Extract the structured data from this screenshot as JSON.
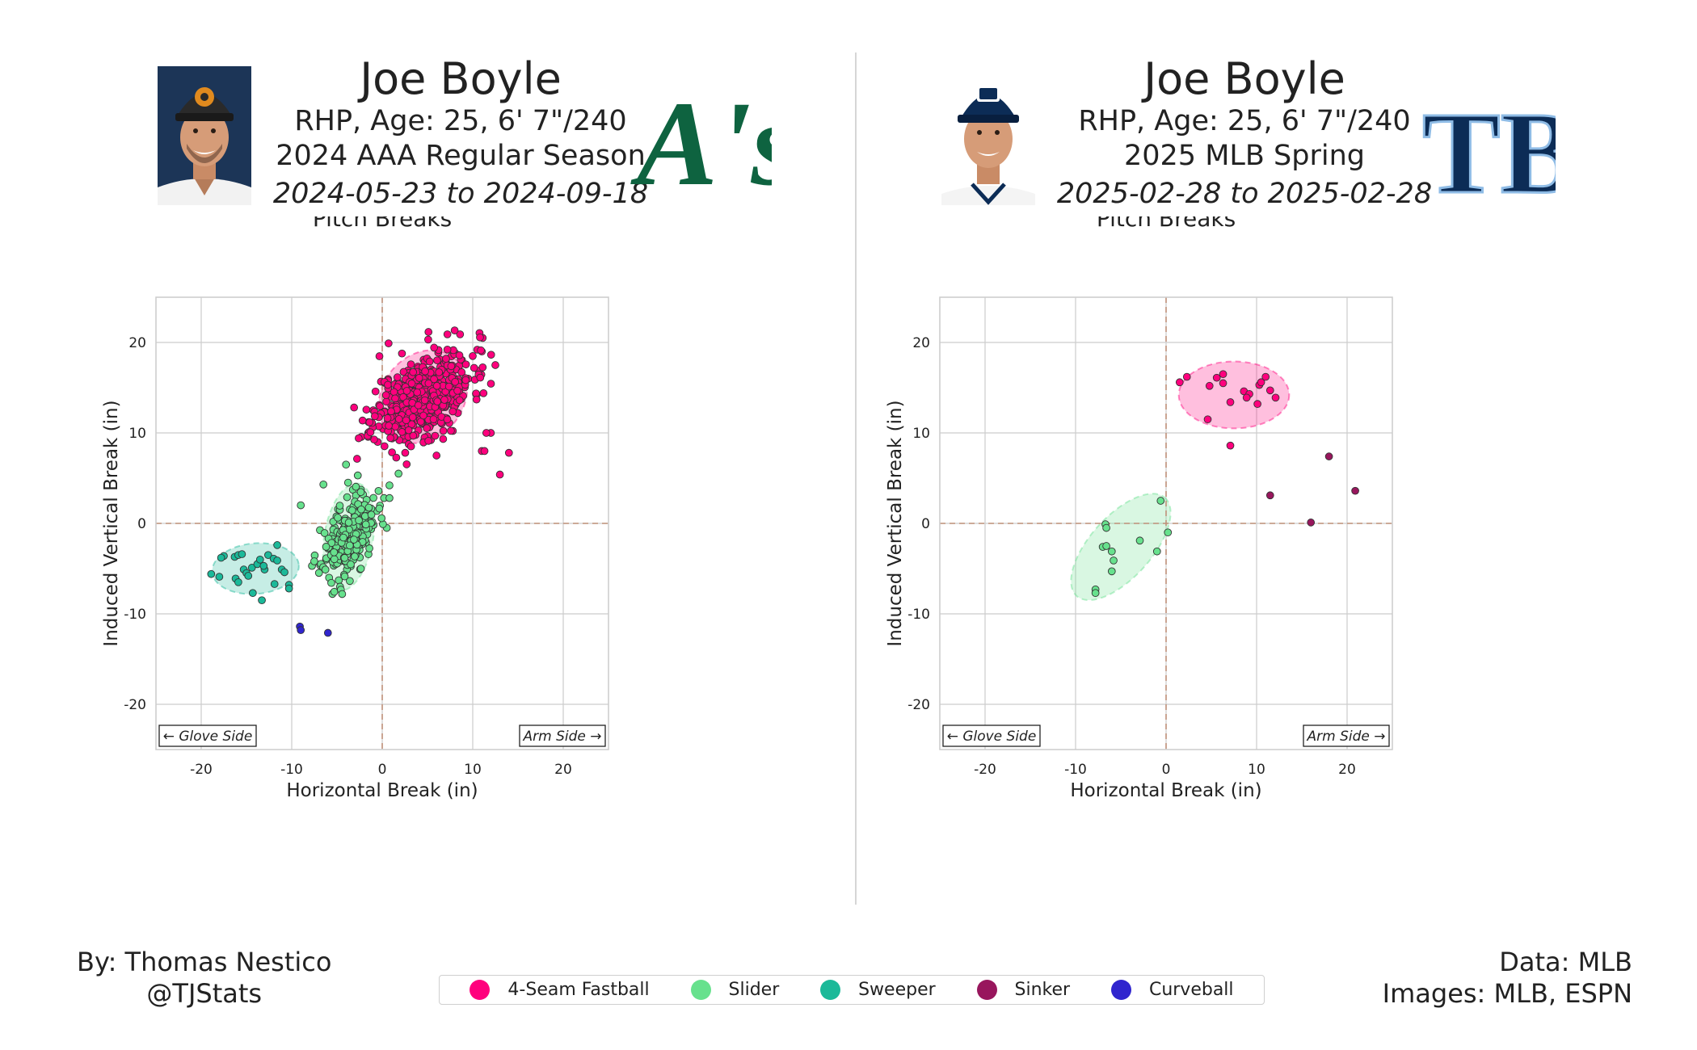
{
  "panels": [
    {
      "id": "left",
      "player_name": "Joe Boyle",
      "bio": "RHP, Age: 25, 6' 7\"/240",
      "season": "2024 AAA Regular Season",
      "dates": "2024-05-23 to 2024-09-18",
      "team_logo": "A's",
      "headshot_icon": "player-headshot-tigers-cap"
    },
    {
      "id": "right",
      "player_name": "Joe Boyle",
      "bio": "RHP, Age: 25, 6' 7\"/240",
      "season": "2025 MLB Spring",
      "dates": "2025-02-28 to 2025-02-28",
      "team_logo": "TB",
      "headshot_icon": "player-headshot-rays-cap"
    }
  ],
  "credits": {
    "by_line": "By: Thomas Nestico",
    "handle": "@TJStats",
    "data_line": "Data: MLB",
    "images_line": "Images: MLB, ESPN"
  },
  "legend": [
    {
      "label": "4-Seam Fastball",
      "color": "#ff007d"
    },
    {
      "label": "Slider",
      "color": "#67e18d"
    },
    {
      "label": "Sweeper",
      "color": "#1bb999"
    },
    {
      "label": "Sinker",
      "color": "#98165d"
    },
    {
      "label": "Curveball",
      "color": "#3025ce"
    }
  ],
  "chart_data": [
    {
      "type": "scatter",
      "title": "Pitch Breaks",
      "xlabel": "Horizontal Break (in)",
      "ylabel": "Induced Vertical Break (in)",
      "xlim": [
        -25,
        25
      ],
      "ylim": [
        -25,
        25
      ],
      "xticks": [
        -20,
        -10,
        0,
        10,
        20
      ],
      "yticks": [
        -20,
        -10,
        0,
        10,
        20
      ],
      "grid": true,
      "annotations": {
        "glove_side": "← Glove Side",
        "arm_side": "Arm Side →"
      },
      "ellipses": [
        {
          "series": "4-Seam Fastball",
          "cx": 4.5,
          "cy": 14,
          "rx": 5.5,
          "ry": 4.5,
          "angle": 52
        },
        {
          "series": "Slider",
          "cx": -3.7,
          "cy": -1.5,
          "rx": 6.0,
          "ry": 2.7,
          "angle": 80
        },
        {
          "series": "Sweeper",
          "cx": -14,
          "cy": -5,
          "rx": 4.8,
          "ry": 2.8,
          "angle": 5
        }
      ],
      "series": [
        {
          "name": "4-Seam Fastball",
          "color": "#ff007d",
          "generated": {
            "count": 520,
            "cx": 4.5,
            "cy": 14,
            "sx": 2.7,
            "sy": 2.5,
            "rho": 0.45,
            "seed": 11
          },
          "values": [
            [
              0.7,
              19.9
            ],
            [
              7.2,
              20.9
            ],
            [
              8.6,
              20.9
            ],
            [
              11.1,
              20.5
            ],
            [
              12.5,
              17.5
            ],
            [
              14,
              7.8
            ],
            [
              13,
              5.4
            ],
            [
              11,
              8
            ],
            [
              11.3,
              8
            ],
            [
              12,
              10
            ],
            [
              11.5,
              10
            ],
            [
              6,
              7.5
            ],
            [
              -1,
              12.5
            ],
            [
              -1.5,
              11.2
            ],
            [
              -0.5,
              9
            ],
            [
              10,
              18.5
            ],
            [
              9.5,
              16
            ],
            [
              11,
              19
            ],
            [
              10.5,
              19.2
            ]
          ]
        },
        {
          "name": "Slider",
          "color": "#67e18d",
          "generated": {
            "count": 240,
            "cx": -3.7,
            "cy": -1.5,
            "sx": 1.5,
            "sy": 2.2,
            "rho": 0.45,
            "seed": 23
          },
          "values": [
            [
              -9,
              2
            ],
            [
              -6.5,
              4.3
            ],
            [
              -4.0,
              6.5
            ],
            [
              -2.7,
              5.3
            ],
            [
              1.8,
              5.5
            ],
            [
              0.8,
              4.2
            ],
            [
              -5.5,
              -7.8
            ],
            [
              0.5,
              -0.5
            ],
            [
              -6.2,
              -4.0
            ],
            [
              0.2,
              2.8
            ],
            [
              0.8,
              2.8
            ]
          ]
        },
        {
          "name": "Sweeper",
          "color": "#1bb999",
          "values": [
            [
              -18.9,
              -5.6
            ],
            [
              -18.0,
              -5.9
            ],
            [
              -17.5,
              -3.6
            ],
            [
              -17.8,
              -3.8
            ],
            [
              -16.3,
              -3.7
            ],
            [
              -15.9,
              -3.5
            ],
            [
              -15.5,
              -3.4
            ],
            [
              -16.2,
              -6.1
            ],
            [
              -15.9,
              -6.5
            ],
            [
              -15.3,
              -5.1
            ],
            [
              -15.0,
              -5.5
            ],
            [
              -14.4,
              -4.9
            ],
            [
              -14.3,
              -7.7
            ],
            [
              -13.8,
              -4.5
            ],
            [
              -13.5,
              -4.0
            ],
            [
              -13.3,
              -8.5
            ],
            [
              -13.0,
              -5.1
            ],
            [
              -12.6,
              -3.5
            ],
            [
              -12.0,
              -3.9
            ],
            [
              -11.9,
              -6.7
            ],
            [
              -11.6,
              -4.1
            ],
            [
              -11.1,
              -5.1
            ],
            [
              -11.6,
              -2.4
            ],
            [
              -10.8,
              -5.4
            ],
            [
              -10.3,
              -6.8
            ],
            [
              -10.3,
              -7.2
            ],
            [
              -14.8,
              -5.8
            ],
            [
              -13.1,
              -4.7
            ]
          ]
        },
        {
          "name": "Curveball",
          "color": "#3025ce",
          "values": [
            [
              -9.1,
              -11.4
            ],
            [
              -9.0,
              -11.8
            ],
            [
              -6.0,
              -12.1
            ]
          ]
        }
      ]
    },
    {
      "type": "scatter",
      "title": "Pitch Breaks",
      "xlabel": "Horizontal Break (in)",
      "ylabel": "Induced Vertical Break (in)",
      "xlim": [
        -25,
        25
      ],
      "ylim": [
        -25,
        25
      ],
      "xticks": [
        -20,
        -10,
        0,
        10,
        20
      ],
      "yticks": [
        -20,
        -10,
        0,
        10,
        20
      ],
      "grid": true,
      "annotations": {
        "glove_side": "← Glove Side",
        "arm_side": "Arm Side →"
      },
      "ellipses": [
        {
          "series": "4-Seam Fastball",
          "cx": 7.5,
          "cy": 14.2,
          "rx": 6.1,
          "ry": 3.7,
          "angle": 0
        },
        {
          "series": "Slider",
          "cx": -5.0,
          "cy": -2.6,
          "rx": 7.3,
          "ry": 3.4,
          "angle": 48
        }
      ],
      "series": [
        {
          "name": "4-Seam Fastball",
          "color": "#ff007d",
          "values": [
            [
              1.5,
              15.6
            ],
            [
              2.3,
              16.2
            ],
            [
              4.8,
              15.2
            ],
            [
              4.6,
              11.5
            ],
            [
              5.6,
              16.1
            ],
            [
              6.3,
              16.5
            ],
            [
              6.3,
              15.5
            ],
            [
              7.1,
              13.4
            ],
            [
              7.1,
              8.6
            ],
            [
              8.6,
              14.6
            ],
            [
              9.2,
              14.3
            ],
            [
              8.9,
              13.9
            ],
            [
              10.1,
              13.2
            ],
            [
              10.3,
              15.3
            ],
            [
              10.5,
              15.6
            ],
            [
              11.0,
              16.2
            ],
            [
              11.5,
              14.7
            ],
            [
              12.1,
              13.9
            ]
          ]
        },
        {
          "name": "Slider",
          "color": "#67e18d",
          "values": [
            [
              -0.6,
              2.5
            ],
            [
              0.2,
              -1.0
            ],
            [
              -1.0,
              -3.1
            ],
            [
              -2.9,
              -1.9
            ],
            [
              -6.7,
              -0.1
            ],
            [
              -6.6,
              -0.5
            ],
            [
              -7.0,
              -2.6
            ],
            [
              -6.6,
              -2.5
            ],
            [
              -6.0,
              -3.1
            ],
            [
              -5.8,
              -4.1
            ],
            [
              -6.0,
              -5.3
            ],
            [
              -7.8,
              -7.3
            ],
            [
              -7.8,
              -7.7
            ]
          ]
        },
        {
          "name": "Sinker",
          "color": "#98165d",
          "values": [
            [
              18.0,
              7.4
            ],
            [
              11.5,
              3.1
            ],
            [
              20.9,
              3.6
            ],
            [
              16.0,
              0.1
            ]
          ]
        }
      ]
    }
  ]
}
